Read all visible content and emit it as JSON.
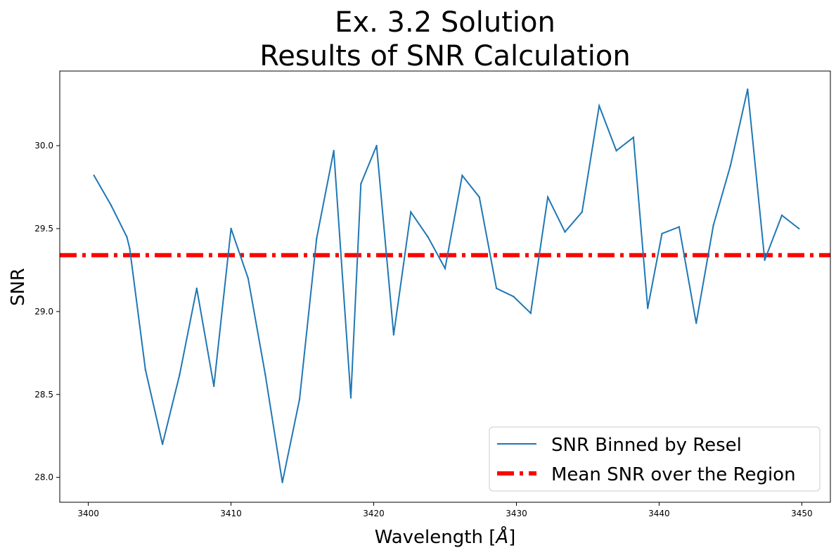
{
  "chart_data": {
    "type": "line",
    "title_line1": "Ex. 3.2 Solution",
    "title_line2": "Results of SNR Calculation",
    "xlabel_main": "Wavelength [",
    "xlabel_unit": "Å",
    "xlabel_close": "]",
    "ylabel": "SNR",
    "xlim": [
      3398,
      3452
    ],
    "ylim": [
      27.85,
      30.45
    ],
    "xticks": [
      3400,
      3410,
      3420,
      3430,
      3440,
      3450
    ],
    "yticks": [
      28.0,
      28.5,
      29.0,
      29.5,
      30.0
    ],
    "legend_position": "lower-right",
    "series": [
      {
        "name": "SNR Binned by Resel",
        "color": "#1f77b4",
        "x": [
          3400.4,
          3401.6,
          3402.7,
          3402.9,
          3404.0,
          3405.2,
          3406.4,
          3407.6,
          3408.8,
          3410.0,
          3411.2,
          3412.4,
          3413.6,
          3414.8,
          3416.0,
          3417.2,
          3418.4,
          3419.1,
          3420.2,
          3421.4,
          3422.6,
          3423.8,
          3425.0,
          3426.2,
          3427.4,
          3428.6,
          3429.8,
          3431.0,
          3432.2,
          3433.4,
          3434.6,
          3435.8,
          3437.0,
          3438.2,
          3439.2,
          3440.2,
          3441.4,
          3442.6,
          3443.8,
          3445.0,
          3446.2,
          3447.4,
          3448.6,
          3449.8
        ],
        "y": [
          29.82,
          29.64,
          29.45,
          29.38,
          28.65,
          28.2,
          28.62,
          29.14,
          28.55,
          29.5,
          29.2,
          28.62,
          27.97,
          28.47,
          29.44,
          29.97,
          28.48,
          29.77,
          30.0,
          28.86,
          29.6,
          29.45,
          29.26,
          29.82,
          29.69,
          29.14,
          29.09,
          28.99,
          29.69,
          29.48,
          29.6,
          30.24,
          29.97,
          30.05,
          29.02,
          29.47,
          29.51,
          28.93,
          29.52,
          29.88,
          30.34,
          29.31,
          29.58,
          29.5
        ]
      },
      {
        "name": "Mean SNR over the Region",
        "color": "#ff0000",
        "style": "dashdot",
        "mean_value": 29.34
      }
    ]
  }
}
